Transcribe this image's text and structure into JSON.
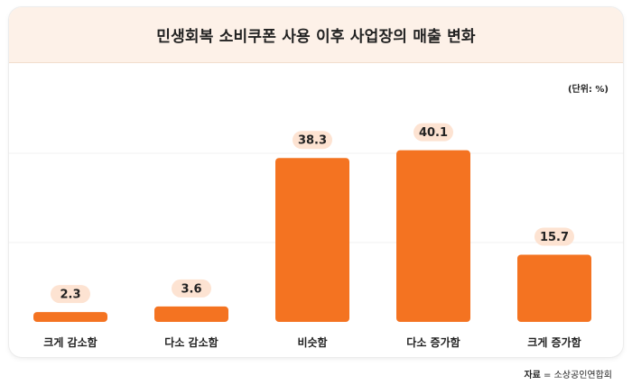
{
  "header": {
    "title": "민생회복 소비쿠폰 사용 이후 사업장의 매출 변화"
  },
  "chart_data": {
    "type": "bar",
    "title": "민생회복 소비쿠폰 사용 이후 사업장의 매출 변화",
    "unit_label": "(단위: %)",
    "categories": [
      "크게 감소함",
      "다소 감소함",
      "비슷함",
      "다소 증가함",
      "크게 증가함"
    ],
    "values": [
      2.3,
      3.6,
      38.3,
      40.1,
      15.7
    ],
    "value_labels": [
      "2.3",
      "3.6",
      "38.3",
      "40.1",
      "15.7"
    ],
    "ylim": [
      0,
      41.5
    ],
    "grid": true,
    "legend": "none",
    "bar_color": "#f47321",
    "label_bg_color": "#fde3d2"
  },
  "source": {
    "label": "자료",
    "separator": " = ",
    "text": "소상공인연합회"
  }
}
